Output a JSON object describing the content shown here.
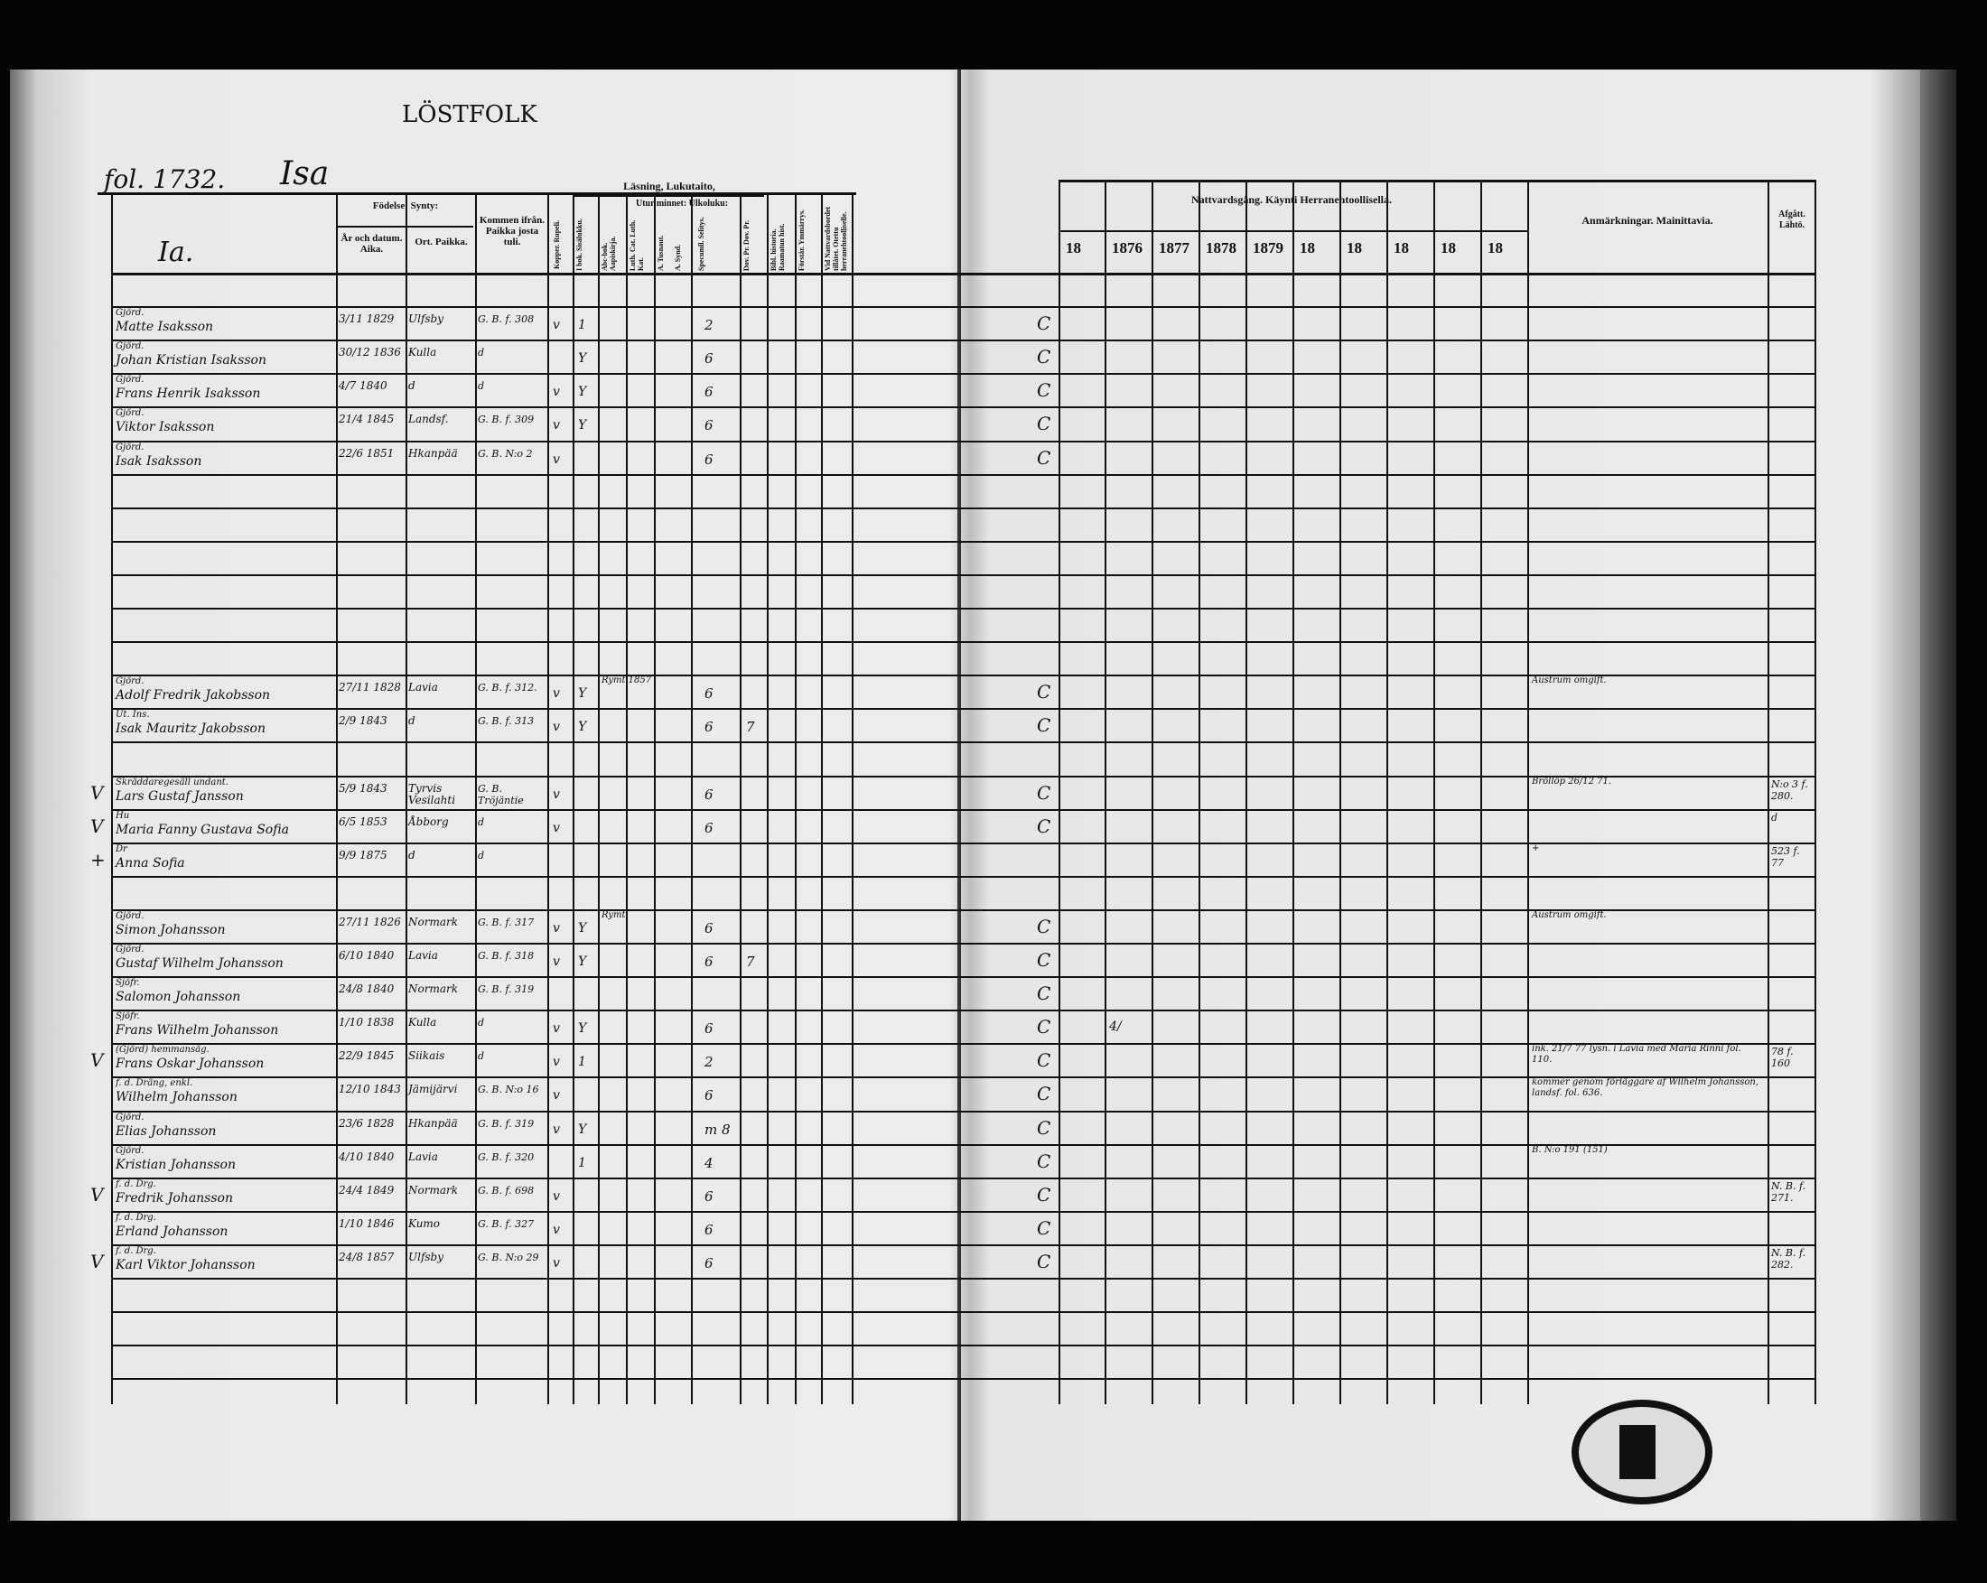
{
  "page": {
    "top_label": "LÖSTFOLK",
    "folio": "fol. 1732.",
    "folio_name": "Isa"
  },
  "headers": {
    "name": "Ia.",
    "birth": "Födelse: Synty:",
    "year_date": "År och datum. Aika.",
    "place": "Ort. Paikka.",
    "from": "Kommen ifrån. Paikka josta tuli.",
    "vacc": "Kopper. Rupeli.",
    "reading": "Läsning, Lukutaito,",
    "by_heart": "Utur minnet: Ulkoluku:",
    "sub": [
      "I bok. Sisälukku.",
      "Abc-bok. Aapiskirja.",
      "Luth. Cat. Luth. Kat.",
      "A. Tusnaut.",
      "A. Synd.",
      "Specumll. Selitys.",
      "Dov. Pr. Dov. Pr.",
      "Bibl. historia. Raamatun hist.",
      "Förstår. Ymmärrys.",
      "Vid Nattvardsbordet tillåtet. Otettu herranehtoolliselle."
    ],
    "communion": "Nattvardsgång. Käynti Herranehtoollisella.",
    "years": [
      "18",
      "1876",
      "1877",
      "1878",
      "1879",
      "18",
      "18",
      "18",
      "18",
      "18"
    ],
    "remarks": "Anmärkningar. Mainittavia.",
    "left": "Afgått. Lähtö."
  },
  "entries": [
    {
      "row": 1,
      "title": "Gjörd.",
      "name": "Matte Isaksson",
      "date": "3/11 1829",
      "place": "Ulfsby",
      "from": "G. B. f. 308",
      "v": "v",
      "bok": "1",
      "spec": "2",
      "comm": "C"
    },
    {
      "row": 2,
      "title": "Gjörd.",
      "name": "Johan Kristian Isaksson",
      "date": "30/12 1836",
      "place": "Kulla",
      "from": "d",
      "v": "",
      "bok": "Y",
      "spec": "6",
      "comm": "C"
    },
    {
      "row": 3,
      "title": "Gjörd.",
      "name": "Frans Henrik Isaksson",
      "date": "4/7 1840",
      "place": "d",
      "from": "d",
      "v": "v",
      "bok": "Y",
      "spec": "6",
      "comm": "C"
    },
    {
      "row": 4,
      "title": "Gjörd.",
      "name": "Viktor Isaksson",
      "date": "21/4 1845",
      "place": "Landsf.",
      "from": "G. B. f. 309",
      "v": "v",
      "bok": "Y",
      "spec": "6",
      "comm": "C"
    },
    {
      "row": 5,
      "title": "Gjörd.",
      "name": "Isak Isaksson",
      "date": "22/6 1851",
      "place": "Hkanpää",
      "from": "G. B. N:o 2",
      "v": "v",
      "bok": "",
      "spec": "6",
      "comm": "C"
    },
    {
      "row": 12,
      "title": "Gjörd.",
      "name": "Adolf Fredrik Jakobsson",
      "date": "27/11 1828",
      "place": "Lavia",
      "from": "G. B. f. 312.",
      "v": "v",
      "bok": "Y",
      "spec": "6",
      "comm": "C",
      "note": "Rymt 1857",
      "remark": "Austrum omgift."
    },
    {
      "row": 13,
      "title": "Ut. Ins.",
      "name": "Isak Mauritz Jakobsson",
      "date": "2/9 1843",
      "place": "d",
      "from": "G. B. f. 313",
      "v": "v",
      "bok": "Y",
      "spec": "6",
      "extra": "7",
      "comm": "C"
    },
    {
      "row": 15,
      "title": "Skräddaregesäll undant.",
      "name": "Lars Gustaf Jansson",
      "date": "5/9 1843",
      "place": "Tyrvis Vesilahti",
      "from": "G. B. Tröjäntie",
      "v": "v",
      "bok": "",
      "spec": "6",
      "comm": "C",
      "mark": "V",
      "remark": "Bröllöp 26/12 71.",
      "left": "N:o 3 f. 280."
    },
    {
      "row": 16,
      "title": "Hu",
      "name": "Maria Fanny Gustava Sofia",
      "date": "6/5 1853",
      "place": "Åbborg",
      "from": "d",
      "v": "v",
      "bok": "",
      "spec": "6",
      "comm": "C",
      "mark": "V",
      "left": "d"
    },
    {
      "row": 17,
      "title": "Dr",
      "name": "Anna Sofia",
      "date": "9/9 1875",
      "place": "d",
      "from": "d",
      "v": "",
      "bok": "",
      "spec": "",
      "comm": "",
      "mark": "+",
      "remark": "+",
      "left": "523 f. 77"
    },
    {
      "row": 19,
      "title": "Gjörd.",
      "name": "Simon Johansson",
      "date": "27/11 1826",
      "place": "Normark",
      "from": "G. B. f. 317",
      "v": "v",
      "bok": "Y",
      "spec": "6",
      "comm": "C",
      "note": "Rymt",
      "remark": "Austrum omgift."
    },
    {
      "row": 20,
      "title": "Gjörd.",
      "name": "Gustaf Wilhelm Johansson",
      "date": "6/10 1840",
      "place": "Lavia",
      "from": "G. B. f. 318",
      "v": "v",
      "bok": "Y",
      "spec": "6",
      "extra": "7",
      "comm": "C"
    },
    {
      "row": 21,
      "title": "Sjöfr.",
      "name": "Salomon Johansson",
      "date": "24/8 1840",
      "place": "Normark",
      "from": "G. B. f. 319",
      "v": "",
      "bok": "",
      "spec": "",
      "comm": "C"
    },
    {
      "row": 22,
      "title": "Sjöfr.",
      "name": "Frans Wilhelm Johansson",
      "date": "1/10 1838",
      "place": "Kulla",
      "from": "d",
      "v": "v",
      "bok": "Y",
      "spec": "6",
      "comm": "C",
      "c1876": "4/"
    },
    {
      "row": 23,
      "title": "(Gjörd) hemmansäg.",
      "name": "Frans Oskar Johansson",
      "date": "22/9 1845",
      "place": "Siikais",
      "from": "d",
      "v": "v",
      "bok": "1",
      "spec": "2",
      "comm": "C",
      "mark": "V",
      "remark": "ink. 21/7 77 lysn. i Lavia med Maria Rinni fol. 110.",
      "left": "78 f. 160"
    },
    {
      "row": 24,
      "title": "f. d. Dräng, enkl.",
      "name": "Wilhelm Johansson",
      "date": "12/10 1843",
      "place": "Jämijärvi",
      "from": "G. B. N:o 16",
      "v": "v",
      "bok": "",
      "spec": "6",
      "comm": "C",
      "remark": "kommer genom förläggare af Wilhelm Johansson, landsf. fol. 636."
    },
    {
      "row": 25,
      "title": "Gjörd.",
      "name": "Elias Johansson",
      "date": "23/6 1828",
      "place": "Hkanpää",
      "from": "G. B. f. 319",
      "v": "v",
      "bok": "Y",
      "spec": "m 8",
      "comm": "C"
    },
    {
      "row": 26,
      "title": "Gjörd.",
      "name": "Kristian Johansson",
      "date": "4/10 1840",
      "place": "Lavia",
      "from": "G. B. f. 320",
      "v": "",
      "bok": "1",
      "spec": "4",
      "comm": "C",
      "remark": "B. N:o 191 (151)"
    },
    {
      "row": 27,
      "title": "f. d. Drg.",
      "name": "Fredrik Johansson",
      "date": "24/4 1849",
      "place": "Normark",
      "from": "G. B. f. 698",
      "v": "v",
      "bok": "",
      "spec": "6",
      "comm": "C",
      "mark": "V",
      "left": "N. B. f. 271."
    },
    {
      "row": 28,
      "title": "f. d. Drg.",
      "name": "Erland Johansson",
      "date": "1/10 1846",
      "place": "Kumo",
      "from": "G. B. f. 327",
      "v": "v",
      "bok": "",
      "spec": "6",
      "comm": "C"
    },
    {
      "row": 29,
      "title": "f. d. Drg.",
      "name": "Karl Viktor Johansson",
      "date": "24/8 1857",
      "place": "Ulfsby",
      "from": "G. B. N:o 29",
      "v": "v",
      "bok": "",
      "spec": "6",
      "comm": "C",
      "mark": "V",
      "left": "N. B. f. 282."
    }
  ],
  "colors": {
    "paper": "#ebebeb",
    "ink": "#111111",
    "background": "#050505"
  }
}
